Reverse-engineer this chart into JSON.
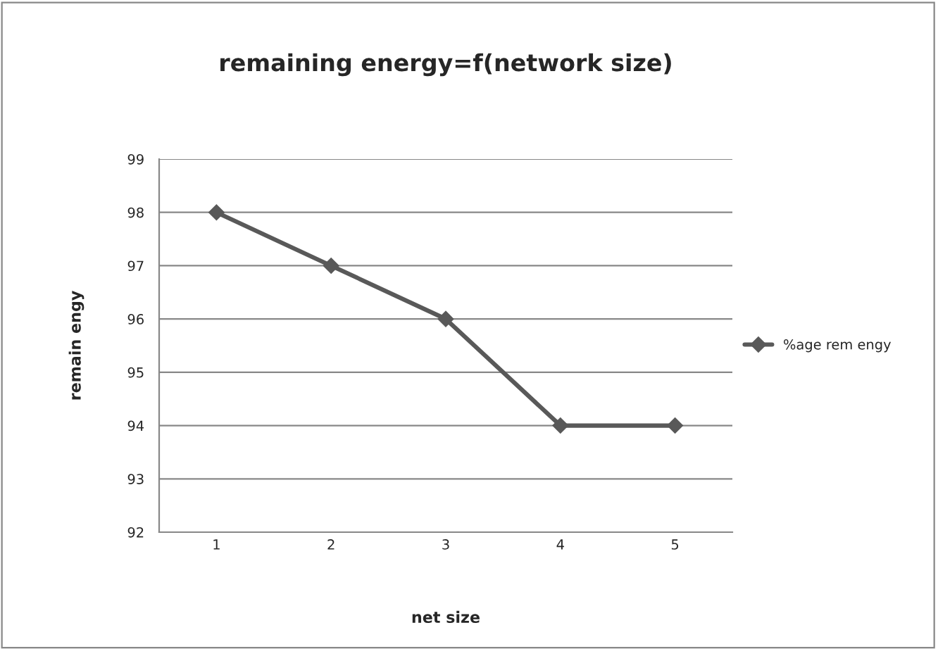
{
  "chart_data": {
    "type": "line",
    "title": "remaining energy=f(network size)",
    "xlabel": "net size",
    "ylabel": "remain engy",
    "categories": [
      "1",
      "2",
      "3",
      "4",
      "5"
    ],
    "series": [
      {
        "name": "%age rem engy",
        "color": "#595959",
        "values": [
          98,
          97,
          96,
          94,
          94
        ]
      }
    ],
    "ylim": [
      92,
      99
    ],
    "yticks": [
      92,
      93,
      94,
      95,
      96,
      97,
      98,
      99
    ],
    "grid": "y",
    "legend": "right",
    "marker": "diamond",
    "line_style": "solid"
  }
}
